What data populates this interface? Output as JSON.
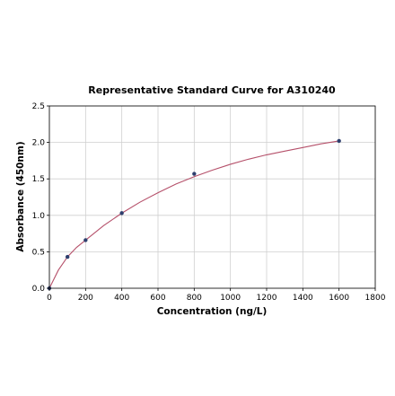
{
  "chart_data": {
    "type": "scatter",
    "title": "Representative Standard Curve for A310240",
    "xlabel": "Concentration (ng/L)",
    "ylabel": "Absorbance (450nm)",
    "xlim": [
      0,
      1800
    ],
    "ylim": [
      0,
      2.5
    ],
    "xticks": [
      "0",
      "200",
      "400",
      "600",
      "800",
      "1000",
      "1200",
      "1400",
      "1600",
      "1800"
    ],
    "yticks": [
      "0.0",
      "0.5",
      "1.0",
      "1.5",
      "2.0",
      "2.5"
    ],
    "grid": true,
    "series": [
      {
        "points": [
          {
            "x": 0,
            "y": 0.0
          },
          {
            "x": 100,
            "y": 0.43
          },
          {
            "x": 200,
            "y": 0.66
          },
          {
            "x": 400,
            "y": 1.03
          },
          {
            "x": 800,
            "y": 1.57
          },
          {
            "x": 1600,
            "y": 2.02
          }
        ],
        "marker_color": "#2e3f6e"
      }
    ],
    "fit_curve": {
      "color": "#b5506a",
      "x": [
        0,
        50,
        100,
        150,
        200,
        300,
        400,
        500,
        600,
        700,
        800,
        900,
        1000,
        1100,
        1200,
        1300,
        1400,
        1500,
        1600
      ],
      "y": [
        0.0,
        0.25,
        0.43,
        0.56,
        0.66,
        0.86,
        1.03,
        1.18,
        1.31,
        1.43,
        1.53,
        1.62,
        1.7,
        1.77,
        1.83,
        1.88,
        1.93,
        1.98,
        2.02
      ]
    }
  }
}
